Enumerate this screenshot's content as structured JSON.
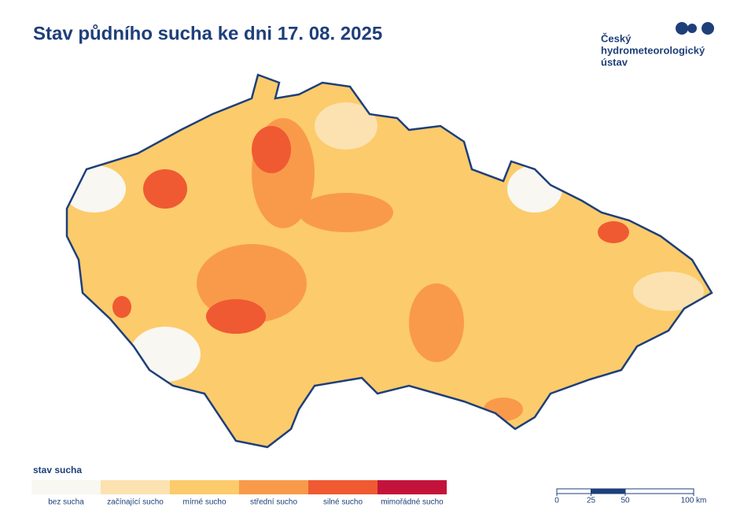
{
  "header": {
    "title": "Stav půdního sucha ke dni 17. 08. 2025"
  },
  "logo": {
    "lines": [
      "Český",
      "hydrometeorologický",
      "ústav"
    ]
  },
  "legend": {
    "title": "stav sucha",
    "items": [
      {
        "label": "bez sucha",
        "color": "#f8f7f1"
      },
      {
        "label": "začínající sucho",
        "color": "#fbe2b0"
      },
      {
        "label": "mírné sucho",
        "color": "#fccb6b"
      },
      {
        "label": "střední sucho",
        "color": "#f99a4b"
      },
      {
        "label": "silné sucho",
        "color": "#ef5a32"
      },
      {
        "label": "mimořádné sucho",
        "color": "#c4133a"
      }
    ]
  },
  "scale_bar": {
    "ticks": [
      0,
      25,
      50,
      {
        "value": 100,
        "label": "100 km"
      }
    ],
    "color": "#1e3f7a"
  }
}
